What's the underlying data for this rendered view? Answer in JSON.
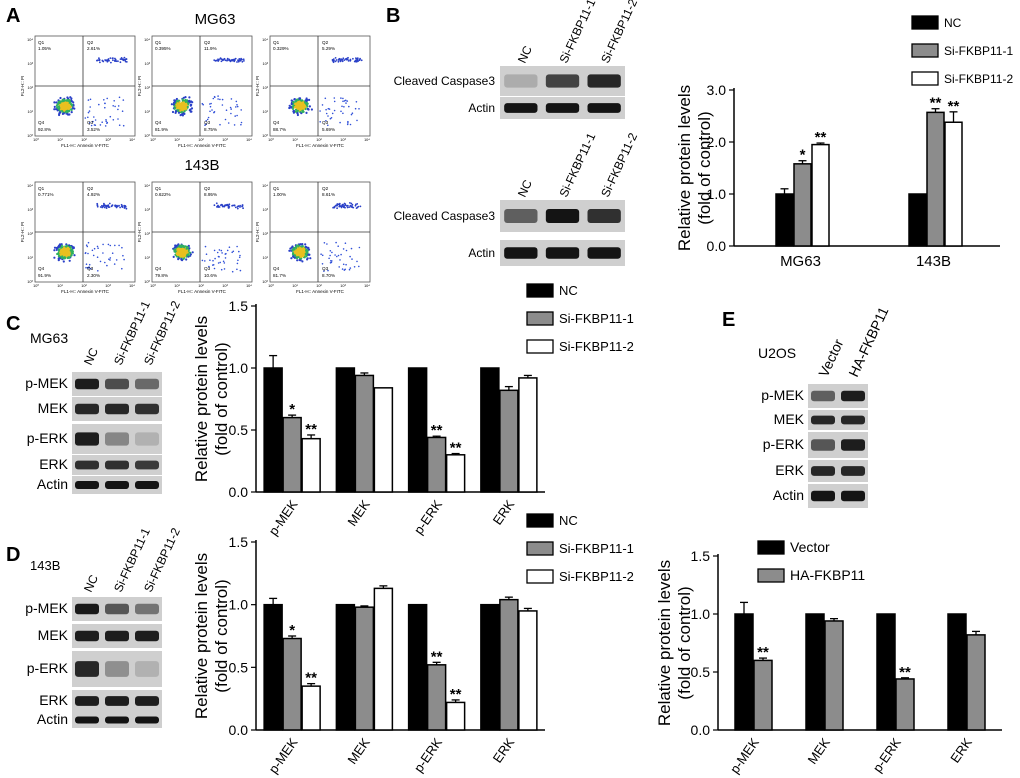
{
  "figure": {
    "panel_letters": [
      "A",
      "B",
      "C",
      "D",
      "E"
    ],
    "cell_lines": {
      "mg63": "MG63",
      "b143": "143B",
      "u2os": "U2OS"
    },
    "flow_axes": {
      "x_label": "FL1-H:: Annexin V-FITC",
      "y_label": "FL2-H:: PI"
    },
    "flow_plots": [
      {
        "cell": "MG63",
        "q1": "1.05%",
        "q2": "2.61%",
        "q3": "3.52%",
        "q4": "92.8%"
      },
      {
        "cell": "MG63",
        "q1": "0.395%",
        "q2": "11.9%",
        "q3": "8.75%",
        "q4": "81.9%"
      },
      {
        "cell": "MG63",
        "q1": "0.329%",
        "q2": "5.29%",
        "q3": "5.69%",
        "q4": "88.7%"
      },
      {
        "cell": "143B",
        "q1": "0.771%",
        "q2": "4.92%",
        "q3": "2.30%",
        "q4": "91.9%"
      },
      {
        "cell": "143B",
        "q1": "0.622%",
        "q2": "8.95%",
        "q3": "10.6%",
        "q4": "79.8%"
      },
      {
        "cell": "143B",
        "q1": "1.00%",
        "q2": "8.61%",
        "q3": "8.70%",
        "q4": "81.7%"
      }
    ],
    "blots": {
      "b_mg63": {
        "lanes": [
          "NC",
          "Si-FKBP11-1",
          "Si-FKBP11-2"
        ],
        "rows": [
          "Cleaved Caspase3",
          "Actin"
        ]
      },
      "b_143b": {
        "lanes": [
          "NC",
          "Si-FKBP11-1",
          "Si-FKBP11-2"
        ],
        "rows": [
          "Cleaved Caspase3",
          "Actin"
        ]
      },
      "c": {
        "lanes": [
          "NC",
          "Si-FKBP11-1",
          "Si-FKBP11-2"
        ],
        "rows": [
          "p-MEK",
          "MEK",
          "p-ERK",
          "ERK",
          "Actin"
        ]
      },
      "d": {
        "lanes": [
          "NC",
          "Si-FKBP11-1",
          "Si-FKBP11-2"
        ],
        "rows": [
          "p-MEK",
          "MEK",
          "p-ERK",
          "ERK",
          "Actin"
        ]
      },
      "e": {
        "lanes": [
          "Vector",
          "HA-FKBP11"
        ],
        "rows": [
          "p-MEK",
          "MEK",
          "p-ERK",
          "ERK",
          "Actin"
        ]
      }
    },
    "colors": {
      "black": "#000000",
      "gray": "#8c8c8c",
      "white": "#ffffff"
    }
  },
  "chart_data": [
    {
      "id": "B",
      "type": "bar",
      "ylabel": "Relative protein levels\n(fold of control)",
      "ylim": [
        0,
        3.0
      ],
      "yticks": [
        "0.0",
        "1.0",
        "2.0",
        "3.0"
      ],
      "categories": [
        "MG63",
        "143B"
      ],
      "series": [
        {
          "name": "NC",
          "color": "#000000",
          "values": [
            1.0,
            1.0
          ],
          "errors": [
            0.1,
            0
          ],
          "sig": [
            "",
            ""
          ]
        },
        {
          "name": "Si-FKBP11-1",
          "color": "#8c8c8c",
          "values": [
            1.58,
            2.57
          ],
          "errors": [
            0.06,
            0.07
          ],
          "sig": [
            "*",
            "**"
          ]
        },
        {
          "name": "Si-FKBP11-2",
          "color": "#ffffff",
          "values": [
            1.95,
            2.38
          ],
          "errors": [
            0.03,
            0.2
          ],
          "sig": [
            "**",
            "**"
          ]
        }
      ],
      "legend": "top-right"
    },
    {
      "id": "C",
      "type": "bar",
      "ylabel": "Relative protein levels\n(fold of control)",
      "ylim": [
        0,
        1.5
      ],
      "yticks": [
        "0.0",
        "0.5",
        "1.0",
        "1.5"
      ],
      "categories": [
        "p-MEK",
        "MEK",
        "p-ERK",
        "ERK"
      ],
      "series": [
        {
          "name": "NC",
          "color": "#000000",
          "values": [
            1.0,
            1.0,
            1.0,
            1.0
          ],
          "errors": [
            0.1,
            0,
            0,
            0
          ],
          "sig": [
            "",
            "",
            "",
            ""
          ]
        },
        {
          "name": "Si-FKBP11-1",
          "color": "#8c8c8c",
          "values": [
            0.6,
            0.94,
            0.44,
            0.82
          ],
          "errors": [
            0.02,
            0.02,
            0.01,
            0.03
          ],
          "sig": [
            "*",
            "",
            "**",
            ""
          ]
        },
        {
          "name": "Si-FKBP11-2",
          "color": "#ffffff",
          "values": [
            0.43,
            0.84,
            0.3,
            0.92
          ],
          "errors": [
            0.03,
            0,
            0.01,
            0.02
          ],
          "sig": [
            "**",
            "",
            "**",
            ""
          ]
        }
      ],
      "legend": "top-right"
    },
    {
      "id": "D",
      "type": "bar",
      "ylabel": "Relative protein levels\n(fold of control)",
      "ylim": [
        0,
        1.5
      ],
      "yticks": [
        "0.0",
        "0.5",
        "1.0",
        "1.5"
      ],
      "categories": [
        "p-MEK",
        "MEK",
        "p-ERK",
        "ERK"
      ],
      "series": [
        {
          "name": "NC",
          "color": "#000000",
          "values": [
            1.0,
            1.0,
            1.0,
            1.0
          ],
          "errors": [
            0.05,
            0,
            0,
            0
          ],
          "sig": [
            "",
            "",
            "",
            ""
          ]
        },
        {
          "name": "Si-FKBP11-1",
          "color": "#8c8c8c",
          "values": [
            0.73,
            0.98,
            0.52,
            1.04
          ],
          "errors": [
            0.02,
            0.01,
            0.02,
            0.02
          ],
          "sig": [
            "*",
            "",
            "**",
            ""
          ]
        },
        {
          "name": "Si-FKBP11-2",
          "color": "#ffffff",
          "values": [
            0.35,
            1.13,
            0.22,
            0.95
          ],
          "errors": [
            0.02,
            0.02,
            0.02,
            0.02
          ],
          "sig": [
            "**",
            "",
            "**",
            ""
          ]
        }
      ],
      "legend": "top-right"
    },
    {
      "id": "E",
      "type": "bar",
      "ylabel": "Relative protein levels\n(fold of control)",
      "ylim": [
        0,
        1.5
      ],
      "yticks": [
        "0.0",
        "0.5",
        "1.0",
        "1.5"
      ],
      "categories": [
        "p-MEK",
        "MEK",
        "p-ERK",
        "ERK"
      ],
      "series": [
        {
          "name": "Vector",
          "color": "#000000",
          "values": [
            1.0,
            1.0,
            1.0,
            1.0
          ],
          "errors": [
            0.1,
            0,
            0,
            0
          ],
          "sig": [
            "",
            "",
            "",
            ""
          ]
        },
        {
          "name": "HA-FKBP11",
          "color": "#8c8c8c",
          "values": [
            0.6,
            0.94,
            0.44,
            0.82
          ],
          "errors": [
            0.02,
            0.02,
            0.01,
            0.03
          ],
          "sig": [
            "**",
            "",
            "**",
            ""
          ]
        }
      ],
      "legend": "top-right"
    }
  ]
}
